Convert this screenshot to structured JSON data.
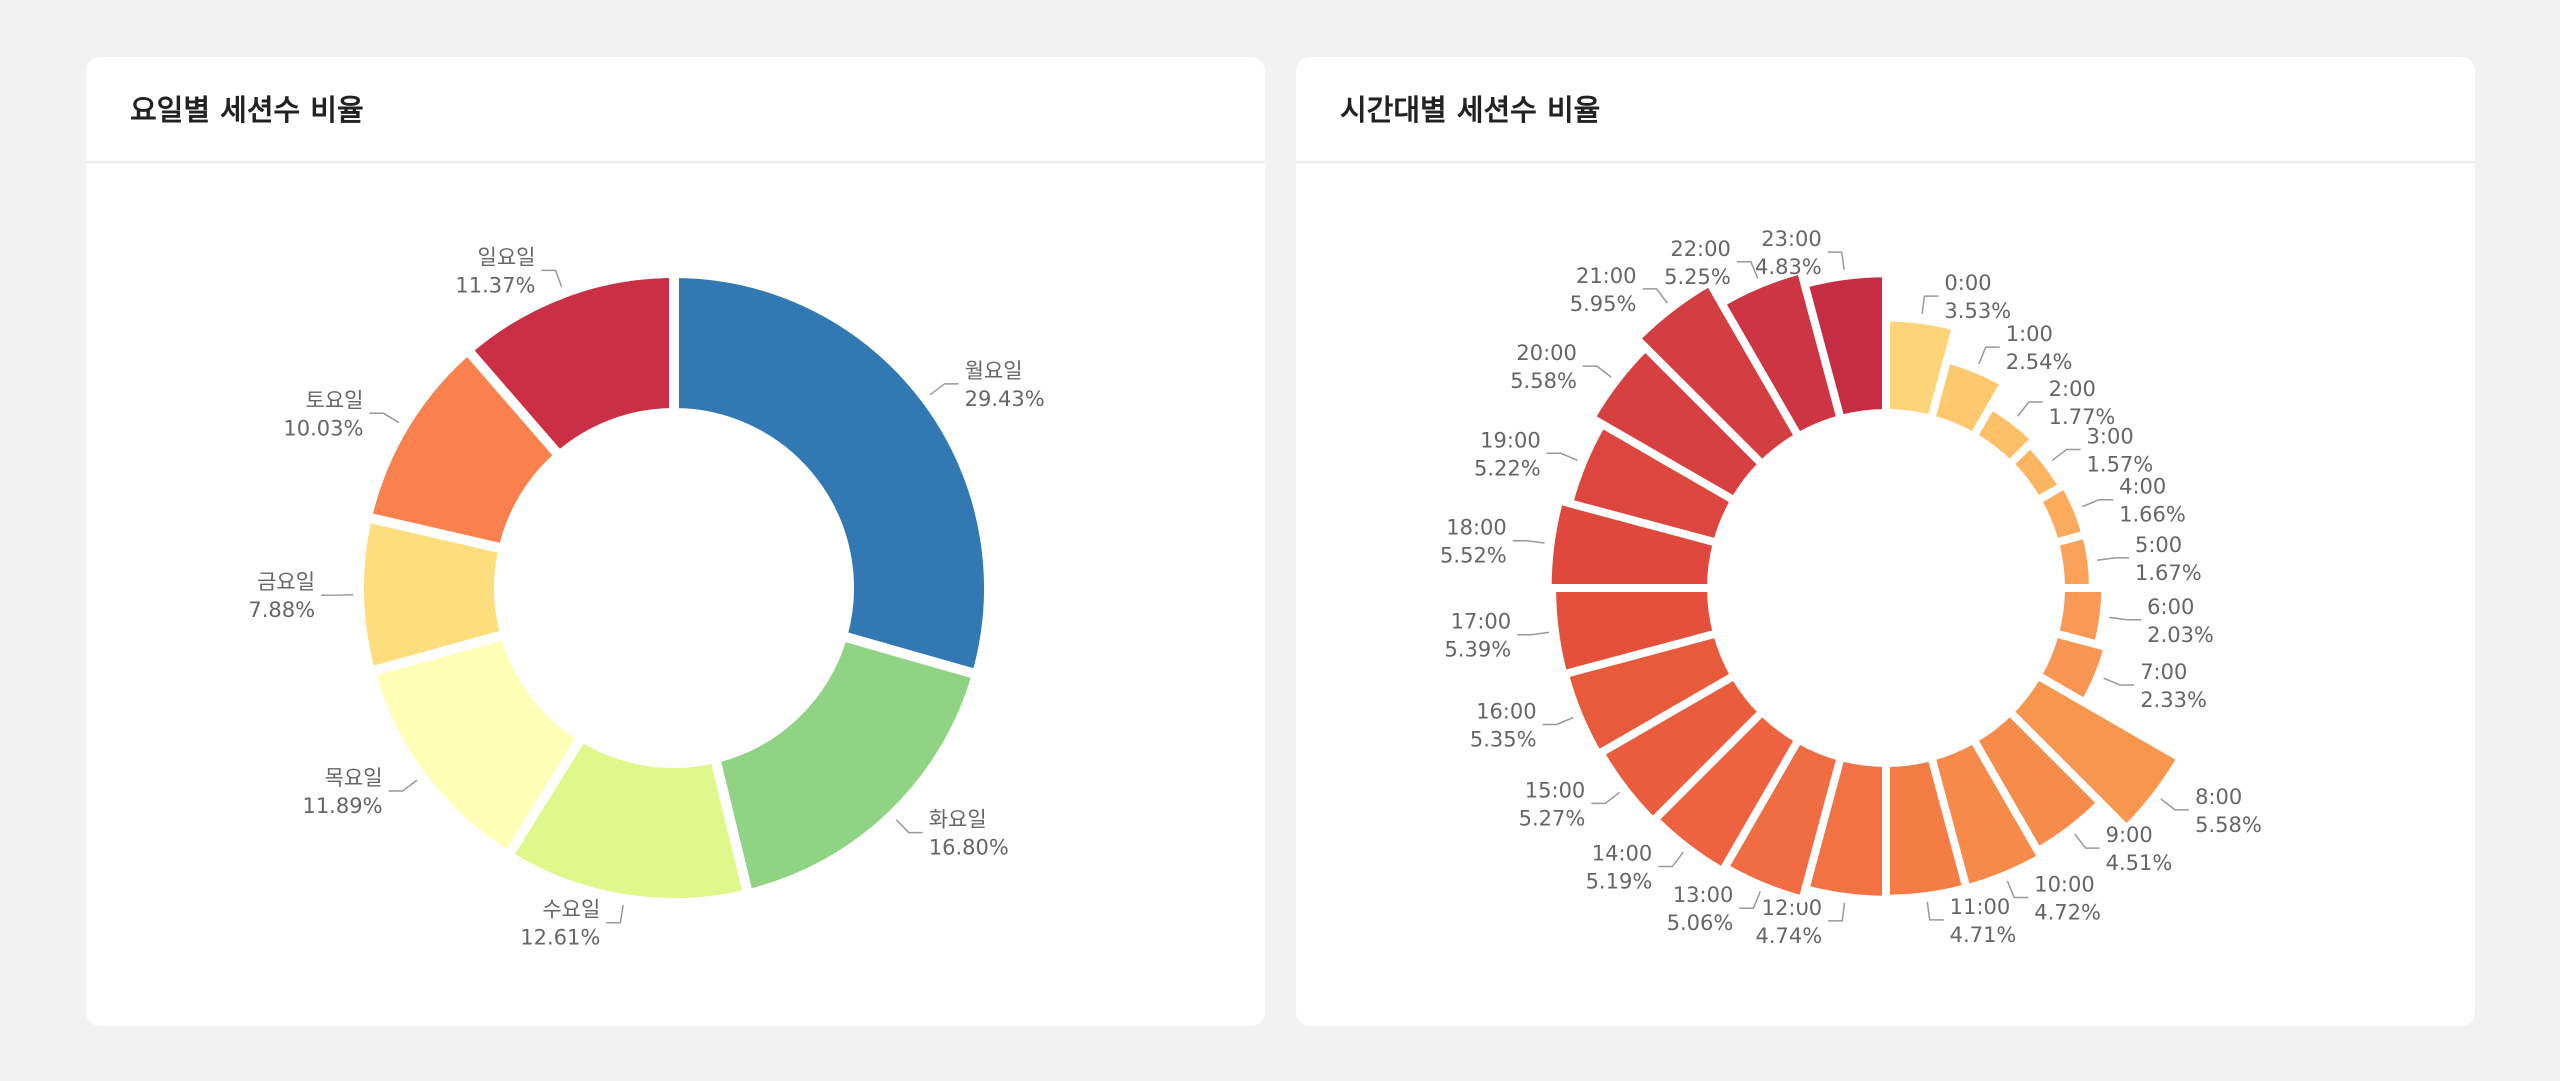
{
  "chart_data": [
    {
      "type": "donut",
      "title": "요일별 세션수 비율",
      "categories": [
        "월요일",
        "화요일",
        "수요일",
        "목요일",
        "금요일",
        "토요일",
        "일요일"
      ],
      "values": [
        29.43,
        16.8,
        12.61,
        11.89,
        7.88,
        10.03,
        11.37
      ],
      "value_labels": [
        "29.43%",
        "16.80%",
        "12.61%",
        "11.89%",
        "7.88%",
        "10.03%",
        "11.37%"
      ],
      "colors": [
        "#3279b3",
        "#91d385",
        "#e0f78b",
        "#ffffb8",
        "#fedd7e",
        "#fa814e",
        "#cb2f45"
      ]
    },
    {
      "type": "rose",
      "title": "시간대별 세션수 비율",
      "categories": [
        "0:00",
        "1:00",
        "2:00",
        "3:00",
        "4:00",
        "5:00",
        "6:00",
        "7:00",
        "8:00",
        "9:00",
        "10:00",
        "11:00",
        "12:00",
        "13:00",
        "14:00",
        "15:00",
        "16:00",
        "17:00",
        "18:00",
        "19:00",
        "20:00",
        "21:00",
        "22:00",
        "23:00"
      ],
      "values": [
        3.53,
        2.54,
        1.77,
        1.57,
        1.66,
        1.67,
        2.03,
        2.33,
        5.58,
        4.51,
        4.72,
        4.71,
        4.74,
        5.06,
        5.19,
        5.27,
        5.35,
        5.39,
        5.52,
        5.22,
        5.58,
        5.95,
        5.25,
        4.83
      ],
      "value_labels": [
        "3.53%",
        "2.54%",
        "1.77%",
        "1.57%",
        "1.66%",
        "1.67%",
        "2.03%",
        "2.33%",
        "5.58%",
        "4.51%",
        "4.72%",
        "4.71%",
        "4.74%",
        "5.06%",
        "5.19%",
        "5.27%",
        "5.35%",
        "5.39%",
        "5.52%",
        "5.22%",
        "5.58%",
        "5.95%",
        "5.25%",
        "4.83%"
      ],
      "colors": [
        "#fed47b",
        "#fec96e",
        "#fdbf68",
        "#fdb562",
        "#fcab5d",
        "#fba159",
        "#fa9856",
        "#f99653",
        "#f89650",
        "#f68c4b",
        "#f58a4a",
        "#f47c45",
        "#f37244",
        "#f06c42",
        "#ed6240",
        "#ea5c3e",
        "#e85a3c",
        "#e5503c",
        "#e0483d",
        "#dc463f",
        "#d74040",
        "#d23e42",
        "#cd3444",
        "#c62d44"
      ]
    }
  ]
}
